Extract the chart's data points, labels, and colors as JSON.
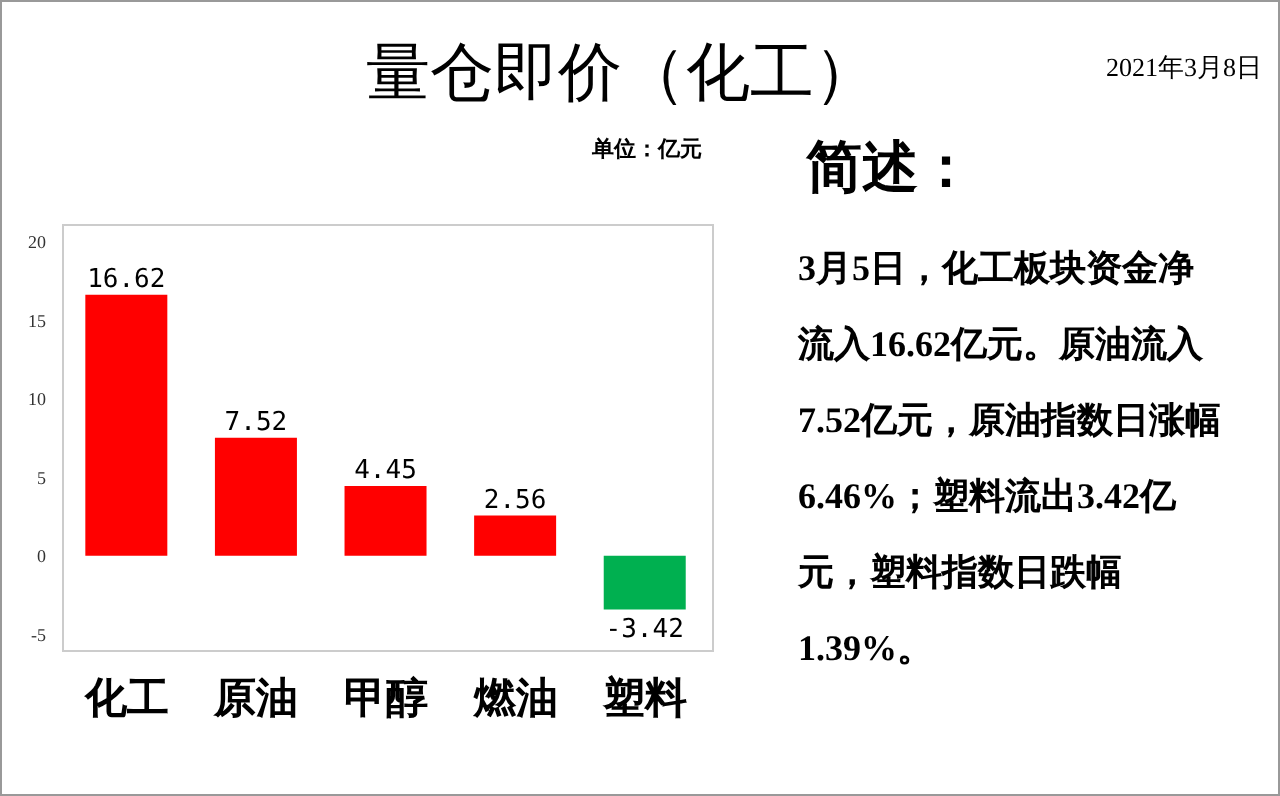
{
  "chart_data": {
    "type": "bar",
    "title": "量仓即价（化工）",
    "categories": [
      "化工",
      "原油",
      "甲醇",
      "燃油",
      "塑料"
    ],
    "values": [
      16.62,
      7.52,
      4.45,
      2.56,
      -3.42
    ],
    "colors": [
      "#ff0000",
      "#ff0000",
      "#ff0000",
      "#ff0000",
      "#00b050"
    ],
    "ylim": [
      -6,
      21
    ],
    "yticks": [
      -5,
      0,
      5,
      10,
      15,
      20
    ],
    "grid": false,
    "data_labels": true,
    "annotations": [
      "2021年3月8日",
      "单位：亿元",
      "简述：",
      "3月5日，化工板块资金净流入16.62亿元。原油流入7.52亿元，原油指数日涨幅6.46%；塑料流出3.42亿元，塑料指数日跌幅1.39%。"
    ]
  }
}
